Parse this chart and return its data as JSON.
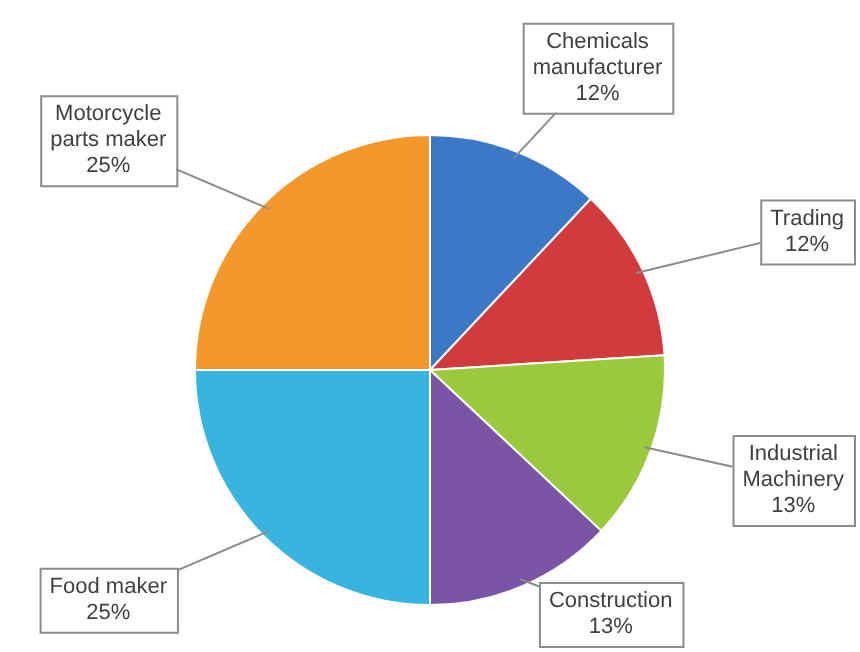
{
  "chart_data": {
    "type": "pie",
    "categories": [
      "Chemicals manufacturer",
      "Trading",
      "Industrial Machinery",
      "Construction",
      "Food maker",
      "Motorcycle parts maker"
    ],
    "values": [
      12,
      12,
      13,
      13,
      25,
      25
    ],
    "value_labels": [
      "12%",
      "12%",
      "13%",
      "13%",
      "25%",
      "25%"
    ],
    "colors": [
      "#3b78c6",
      "#d13b3e",
      "#9bc93c",
      "#7a55a6",
      "#37b5df",
      "#f5982c"
    ],
    "legend": false
  }
}
